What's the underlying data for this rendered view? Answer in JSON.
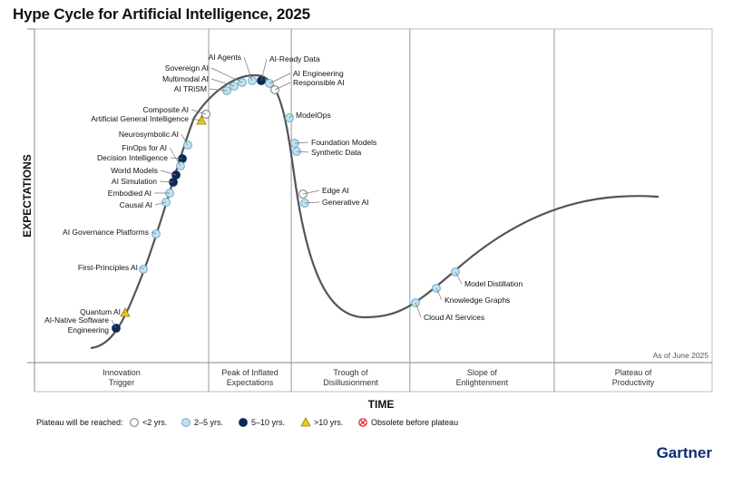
{
  "title": "Hype Cycle for Artificial Intelligence, 2025",
  "as_of": "As of June 2025",
  "brand": "Gartner",
  "colors": {
    "lt2": "#ffffff",
    "y2to5": "#bfe2f2",
    "y5to10": "#0d2a57",
    "gt10": "#f3c623",
    "obsolete": "#e31b23",
    "curve": "#555555"
  },
  "legend": {
    "title": "Plateau will be reached:",
    "items": [
      {
        "key": "lt2",
        "label": "<2 yrs."
      },
      {
        "key": "y2to5",
        "label": "2–5 yrs."
      },
      {
        "key": "y5to10",
        "label": "5–10 yrs."
      },
      {
        "key": "gt10",
        "label": ">10 yrs."
      },
      {
        "key": "obsolete",
        "label": "Obsolete before plateau"
      }
    ]
  },
  "chart_data": {
    "type": "scatter",
    "title": "Hype Cycle for Artificial Intelligence, 2025",
    "xlabel": "TIME",
    "ylabel": "EXPECTATIONS",
    "phases": [
      {
        "name": "Innovation\nTrigger"
      },
      {
        "name": "Peak of Inflated\nExpectations"
      },
      {
        "name": "Trough of\nDisillusionment"
      },
      {
        "name": "Slope of\nEnlightenment"
      },
      {
        "name": "Plateau of\nProductivity"
      }
    ],
    "series": [
      {
        "name": "AI-Native Software Engineering",
        "category": "y5to10",
        "x": 0.12,
        "y": 0.11
      },
      {
        "name": "Quantum AI",
        "category": "gt10",
        "x": 0.13,
        "y": 0.18
      },
      {
        "name": "First-Principles AI",
        "category": "y2to5",
        "x": 0.16,
        "y": 0.35
      },
      {
        "name": "AI Governance Platforms",
        "category": "y2to5",
        "x": 0.175,
        "y": 0.49
      },
      {
        "name": "Causal AI",
        "category": "y2to5",
        "x": 0.187,
        "y": 0.63
      },
      {
        "name": "Embodied AI",
        "category": "y2to5",
        "x": 0.19,
        "y": 0.67
      },
      {
        "name": "AI Simulation",
        "category": "y5to10",
        "x": 0.195,
        "y": 0.7
      },
      {
        "name": "World Models",
        "category": "y5to10",
        "x": 0.198,
        "y": 0.74
      },
      {
        "name": "Decision Intelligence",
        "category": "y5to10",
        "x": 0.205,
        "y": 0.78
      },
      {
        "name": "FinOps for AI",
        "category": "y2to5",
        "x": 0.207,
        "y": 0.81
      },
      {
        "name": "Neurosymbolic AI",
        "category": "y2to5",
        "x": 0.213,
        "y": 0.85
      },
      {
        "name": "Artificial General Intelligence",
        "category": "gt10",
        "x": 0.23,
        "y": 0.9
      },
      {
        "name": "Composite AI",
        "category": "lt2",
        "x": 0.234,
        "y": 0.92
      },
      {
        "name": "AI TRiSM",
        "category": "y2to5",
        "x": 0.26,
        "y": 0.97
      },
      {
        "name": "Multimodal AI",
        "category": "y2to5",
        "x": 0.27,
        "y": 0.98
      },
      {
        "name": "Sovereign AI",
        "category": "y2to5",
        "x": 0.28,
        "y": 0.995
      },
      {
        "name": "AI Agents",
        "category": "y2to5",
        "x": 0.29,
        "y": 1.0
      },
      {
        "name": "AI-Ready Data",
        "category": "y5to10",
        "x": 0.3,
        "y": 1.0
      },
      {
        "name": "AI Engineering",
        "category": "y2to5",
        "x": 0.31,
        "y": 0.99
      },
      {
        "name": "Responsible AI",
        "category": "lt2",
        "x": 0.317,
        "y": 0.97
      },
      {
        "name": "ModelOps",
        "category": "y2to5",
        "x": 0.34,
        "y": 0.88
      },
      {
        "name": "Foundation Models",
        "category": "y2to5",
        "x": 0.348,
        "y": 0.79
      },
      {
        "name": "Synthetic Data",
        "category": "y2to5",
        "x": 0.35,
        "y": 0.77
      },
      {
        "name": "Edge AI",
        "category": "lt2",
        "x": 0.358,
        "y": 0.66
      },
      {
        "name": "Generative AI",
        "category": "y2to5",
        "x": 0.36,
        "y": 0.63
      },
      {
        "name": "Cloud AI Services",
        "category": "y2to5",
        "x": 0.59,
        "y": 0.22
      },
      {
        "name": "Knowledge Graphs",
        "category": "y2to5",
        "x": 0.62,
        "y": 0.27
      },
      {
        "name": "Model Distillation",
        "category": "y2to5",
        "x": 0.645,
        "y": 0.33
      }
    ],
    "grid": false
  }
}
